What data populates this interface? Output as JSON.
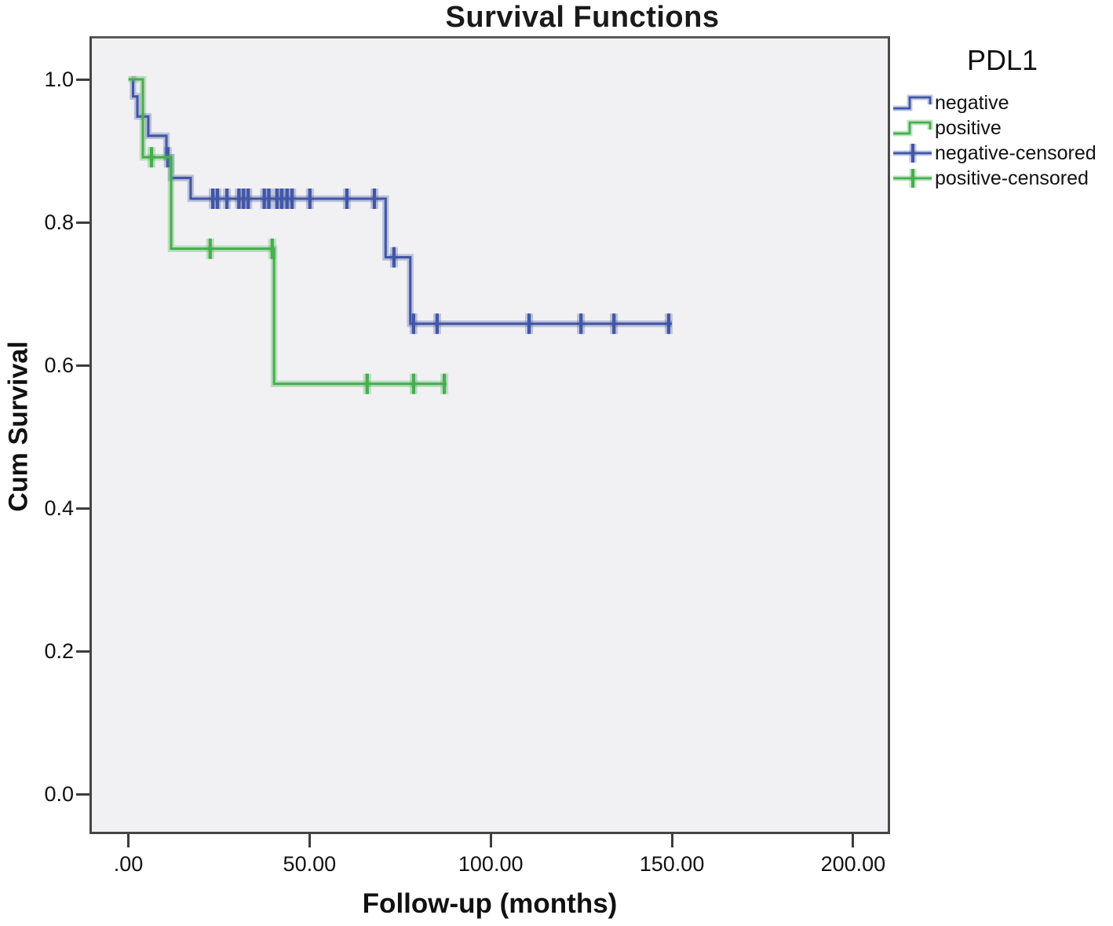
{
  "title": "Survival Functions",
  "axes": {
    "x": {
      "label": "Follow-up (months)"
    },
    "y": {
      "label": "Cum Survival"
    }
  },
  "legend": {
    "title": "PDL1",
    "entries": [
      {
        "label": "negative",
        "symbol": "step-line",
        "series": "negative"
      },
      {
        "label": "positive",
        "symbol": "step-line",
        "series": "positive"
      },
      {
        "label": "negative-censored",
        "symbol": "censor-cross",
        "series": "negative"
      },
      {
        "label": "positive-censored",
        "symbol": "censor-cross",
        "series": "positive"
      }
    ]
  },
  "colors": {
    "negative": "#4156a6",
    "positive": "#46ae4f",
    "frame": "#454545",
    "plot_bg": "#f1f1f3",
    "text": "#111111"
  },
  "chart_data": {
    "type": "line",
    "subtype": "kaplan_meier_step",
    "title": "Survival Functions",
    "xlabel": "Follow-up (months)",
    "ylabel": "Cum Survival",
    "xlim": [
      -10.7,
      210.6
    ],
    "ylim": [
      -0.054,
      1.064
    ],
    "grid": false,
    "legend_position": "top-right",
    "xticks": [
      0,
      50,
      100,
      150,
      200
    ],
    "xtick_labels": [
      ".00",
      "50.00",
      "100.00",
      "150.00",
      "200.00"
    ],
    "yticks": [
      0.0,
      0.2,
      0.4,
      0.6,
      0.8,
      1.0
    ],
    "ytick_labels": [
      "0.0",
      "0.2",
      "0.4",
      "0.6",
      "0.8",
      "1.0"
    ],
    "series": [
      {
        "name": "negative",
        "color": "#4156a6",
        "steps": [
          [
            0.8,
            1.0
          ],
          [
            1.3,
            0.976
          ],
          [
            2.5,
            0.948
          ],
          [
            5.5,
            0.921
          ],
          [
            10.5,
            0.891
          ],
          [
            11.8,
            0.862
          ],
          [
            17.2,
            0.833
          ],
          [
            71.0,
            0.751
          ],
          [
            77.8,
            0.658
          ]
        ],
        "end_time": 150,
        "censored": [
          [
            10.9,
            0.891
          ],
          [
            23.3,
            0.833
          ],
          [
            24.6,
            0.833
          ],
          [
            27.2,
            0.833
          ],
          [
            30.5,
            0.833
          ],
          [
            31.8,
            0.833
          ],
          [
            33.1,
            0.833
          ],
          [
            37.5,
            0.833
          ],
          [
            38.8,
            0.833
          ],
          [
            41.0,
            0.833
          ],
          [
            42.3,
            0.833
          ],
          [
            43.8,
            0.833
          ],
          [
            45.2,
            0.833
          ],
          [
            50.1,
            0.833
          ],
          [
            60.3,
            0.833
          ],
          [
            67.9,
            0.833
          ],
          [
            73.3,
            0.751
          ],
          [
            78.7,
            0.658
          ],
          [
            85.2,
            0.658
          ],
          [
            110.6,
            0.658
          ],
          [
            124.9,
            0.658
          ],
          [
            134.0,
            0.658
          ],
          [
            149.1,
            0.658
          ]
        ]
      },
      {
        "name": "positive",
        "color": "#46ae4f",
        "steps": [
          [
            0.0,
            1.0
          ],
          [
            4.0,
            0.891
          ],
          [
            11.8,
            0.763
          ],
          [
            40.2,
            0.574
          ]
        ],
        "end_time": 87.8,
        "censored": [
          [
            6.4,
            0.891
          ],
          [
            22.6,
            0.763
          ],
          [
            39.7,
            0.763
          ],
          [
            65.9,
            0.574
          ],
          [
            78.7,
            0.574
          ],
          [
            87.2,
            0.574
          ]
        ]
      }
    ]
  }
}
